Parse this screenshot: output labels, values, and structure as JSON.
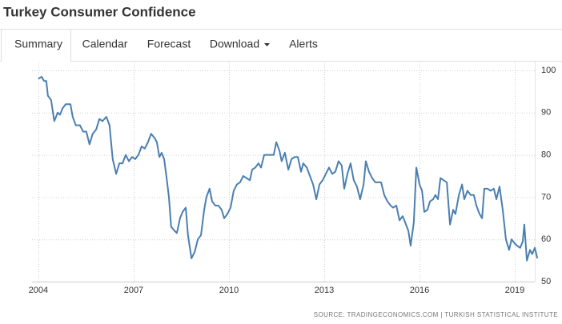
{
  "page_title": "Turkey Consumer Confidence",
  "tabs": [
    "Summary",
    "Calendar",
    "Forecast",
    "Download",
    "Alerts"
  ],
  "chart_data": {
    "type": "line",
    "source": "SOURCE: TRADINGECONOMICS.COM | TURKISH STATISTICAL INSTITUTE",
    "xlim": [
      2003.8,
      2019.73
    ],
    "xticks": [
      2004,
      2007,
      2010,
      2013,
      2016,
      2019
    ],
    "ylim": [
      50,
      100
    ],
    "yticks": [
      50,
      60,
      70,
      80,
      90,
      100
    ],
    "grid": true,
    "color": "#4a7fb0",
    "x": [
      2004.0,
      2004.1,
      2004.18,
      2004.25,
      2004.3,
      2004.4,
      2004.5,
      2004.61,
      2004.68,
      2004.76,
      2004.86,
      2005.01,
      2005.08,
      2005.18,
      2005.31,
      2005.41,
      2005.51,
      2005.61,
      2005.71,
      2005.82,
      2005.92,
      2006.02,
      2006.14,
      2006.24,
      2006.34,
      2006.45,
      2006.55,
      2006.65,
      2006.75,
      2006.85,
      2006.95,
      2007.05,
      2007.15,
      2007.25,
      2007.35,
      2007.45,
      2007.55,
      2007.66,
      2007.73,
      2007.81,
      2007.88,
      2007.96,
      2008.03,
      2008.11,
      2008.18,
      2008.29,
      2008.36,
      2008.46,
      2008.54,
      2008.64,
      2008.71,
      2008.82,
      2008.92,
      2009.02,
      2009.12,
      2009.22,
      2009.29,
      2009.39,
      2009.47,
      2009.57,
      2009.67,
      2009.77,
      2009.85,
      2009.95,
      2010.05,
      2010.15,
      2010.25,
      2010.35,
      2010.45,
      2010.55,
      2010.66,
      2010.73,
      2010.83,
      2010.93,
      2011.01,
      2011.11,
      2011.21,
      2011.31,
      2011.41,
      2011.49,
      2011.59,
      2011.66,
      2011.76,
      2011.87,
      2011.97,
      2012.07,
      2012.17,
      2012.27,
      2012.34,
      2012.45,
      2012.55,
      2012.65,
      2012.75,
      2012.85,
      2012.95,
      2013.05,
      2013.15,
      2013.25,
      2013.35,
      2013.45,
      2013.55,
      2013.63,
      2013.73,
      2013.83,
      2013.93,
      2014.03,
      2014.13,
      2014.24,
      2014.31,
      2014.41,
      2014.51,
      2014.61,
      2014.69,
      2014.79,
      2014.89,
      2014.99,
      2015.09,
      2015.17,
      2015.27,
      2015.37,
      2015.47,
      2015.55,
      2015.65,
      2015.72,
      2015.82,
      2015.9,
      2016.0,
      2016.08,
      2016.15,
      2016.25,
      2016.33,
      2016.43,
      2016.5,
      2016.58,
      2016.66,
      2016.76,
      2016.86,
      2016.96,
      2017.06,
      2017.13,
      2017.24,
      2017.34,
      2017.41,
      2017.51,
      2017.61,
      2017.71,
      2017.79,
      2017.89,
      2017.97,
      2018.04,
      2018.14,
      2018.24,
      2018.34,
      2018.42,
      2018.52,
      2018.62,
      2018.72,
      2018.82,
      2018.9,
      2019.0,
      2019.07,
      2019.17,
      2019.25,
      2019.3,
      2019.38,
      2019.48,
      2019.55,
      2019.63,
      2019.71
    ],
    "values": [
      98,
      98.5,
      97.5,
      97.5,
      94,
      93,
      88,
      90,
      89.5,
      91,
      92,
      92,
      89,
      87,
      87,
      85.5,
      85.5,
      82.5,
      85,
      86,
      88.5,
      88,
      89,
      87,
      79,
      75.5,
      78,
      78,
      80,
      78.5,
      79.5,
      79,
      80,
      82,
      81.5,
      83,
      85,
      84,
      83,
      79.5,
      80.5,
      79,
      75,
      70,
      63,
      62,
      61.5,
      65,
      66.5,
      67.5,
      61,
      55.5,
      57,
      60,
      61,
      67,
      70,
      72,
      69,
      68,
      68,
      67,
      65,
      66,
      67.5,
      71.5,
      73,
      73.5,
      75,
      74.5,
      74,
      76.5,
      77,
      78,
      77,
      80,
      80,
      80,
      80,
      83,
      81,
      78.5,
      80.5,
      76.5,
      79,
      79.5,
      79.5,
      76,
      78,
      77,
      75,
      73,
      69.5,
      73,
      74,
      75.5,
      77,
      75.5,
      76,
      78.5,
      77.5,
      72,
      75.5,
      78,
      74,
      72.5,
      69.5,
      73,
      78.5,
      76,
      74.5,
      73.5,
      73.5,
      73.5,
      70.5,
      69,
      68,
      67.5,
      68,
      64.5,
      65.5,
      64,
      62,
      58.5,
      64,
      77,
      73,
      71.5,
      66.5,
      67,
      69,
      69.5,
      70.5,
      69.5,
      74.5,
      74,
      73.5,
      63.5,
      67,
      66,
      70.5,
      73,
      69.5,
      71.5,
      70.5,
      70.5,
      68,
      66,
      65,
      72,
      72,
      71.5,
      72,
      69.5,
      72.5,
      67,
      60,
      57.5,
      60,
      59,
      58.5,
      58,
      59.5,
      63.5,
      55,
      57.5,
      56.5,
      58,
      55.5
    ]
  }
}
